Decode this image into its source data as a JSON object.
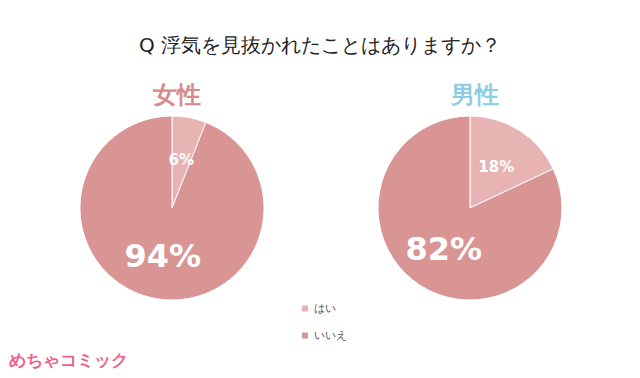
{
  "title": "Q 浮気を見抜かれたことはありますか？",
  "annotations": [
    "めちゃコミック"
  ],
  "legend": "bottom",
  "chart_data": [
    {
      "type": "pie",
      "title": "女性",
      "categories": [
        "はい",
        "いいえ"
      ],
      "values": [
        6,
        94
      ],
      "value_labels": [
        "6%",
        "94%"
      ],
      "colors": [
        "#e8b3b3",
        "#d99494"
      ],
      "data_labels": true
    },
    {
      "type": "pie",
      "title": "男性",
      "categories": [
        "はい",
        "いいえ"
      ],
      "values": [
        18,
        82
      ],
      "value_labels": [
        "18%",
        "82%"
      ],
      "colors": [
        "#e8b3b3",
        "#d99494"
      ],
      "data_labels": true
    }
  ]
}
